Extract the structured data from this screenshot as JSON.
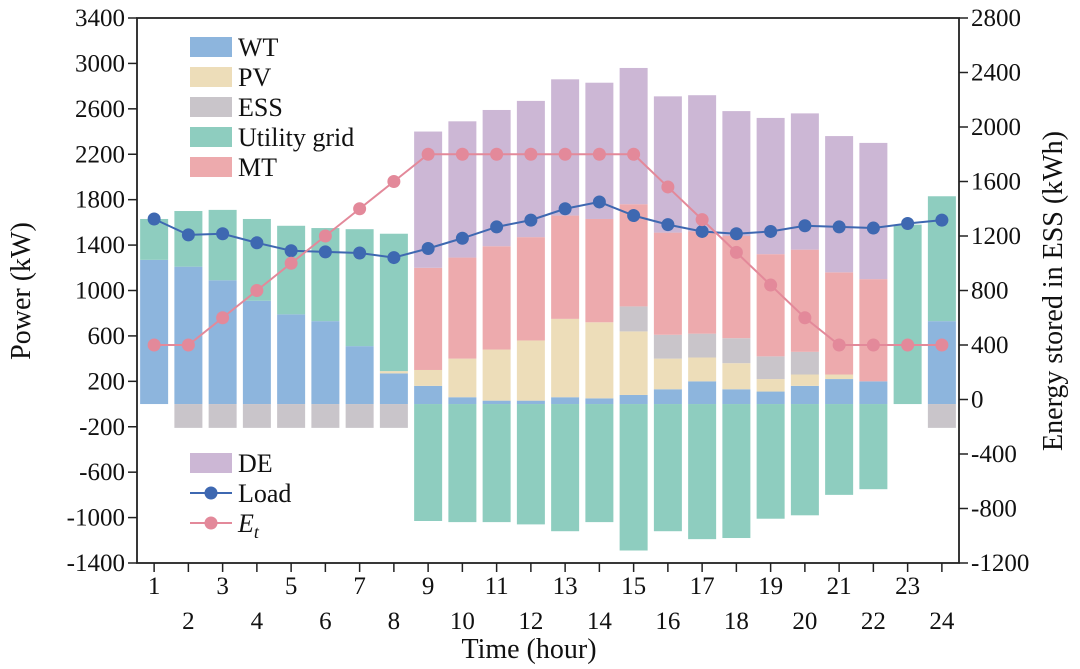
{
  "chart_data": {
    "type": "bar",
    "xlabel": "Time (hour)",
    "ylabel_left": "Power (kW)",
    "ylabel_right": "Energy stored in ESS (kWh)",
    "ylim_left": [
      -1400,
      3400
    ],
    "yticks_left": [
      -1400,
      -1000,
      -600,
      -200,
      200,
      600,
      1000,
      1400,
      1800,
      2200,
      2600,
      3000,
      3400
    ],
    "ylim_right": [
      -1200,
      2800
    ],
    "yticks_right": [
      -1200,
      -800,
      -400,
      0,
      400,
      800,
      1200,
      1600,
      2000,
      2400,
      2800
    ],
    "categories": [
      "1",
      "2",
      "3",
      "4",
      "5",
      "6",
      "7",
      "8",
      "9",
      "10",
      "11",
      "12",
      "13",
      "14",
      "15",
      "16",
      "17",
      "18",
      "19",
      "20",
      "21",
      "22",
      "23",
      "24"
    ],
    "bar_series": [
      {
        "name": "WT",
        "color": "#8DB5DD",
        "values": [
          1270,
          1210,
          1090,
          910,
          790,
          730,
          510,
          270,
          160,
          60,
          30,
          30,
          60,
          50,
          80,
          130,
          200,
          130,
          110,
          160,
          220,
          200,
          0,
          730
        ]
      },
      {
        "name": "PV",
        "color": "#EDDDB9",
        "values": [
          0,
          0,
          0,
          0,
          0,
          0,
          0,
          20,
          140,
          340,
          450,
          530,
          690,
          670,
          560,
          270,
          210,
          230,
          110,
          100,
          40,
          0,
          0,
          0
        ]
      },
      {
        "name": "ESS",
        "color": "#C9C5CA",
        "values": [
          0,
          -210,
          -210,
          -210,
          -210,
          -210,
          -210,
          -210,
          0,
          0,
          0,
          0,
          0,
          0,
          220,
          210,
          210,
          220,
          200,
          200,
          0,
          0,
          0,
          -210
        ]
      },
      {
        "name": "Utility grid",
        "color": "#8ECDBF",
        "values": [
          360,
          490,
          620,
          720,
          780,
          820,
          1030,
          1210,
          -1030,
          -1040,
          -1040,
          -1060,
          -1120,
          -1040,
          -1290,
          -1120,
          -1190,
          -1180,
          -1010,
          -980,
          -800,
          -750,
          1580,
          1100
        ]
      },
      {
        "name": "MT",
        "color": "#EDAAAD",
        "values": [
          0,
          0,
          0,
          0,
          0,
          0,
          0,
          0,
          900,
          890,
          910,
          910,
          910,
          910,
          900,
          900,
          900,
          900,
          900,
          900,
          900,
          900,
          0,
          0
        ]
      },
      {
        "name": "DE",
        "color": "#CCB7D5",
        "values": [
          0,
          0,
          0,
          0,
          0,
          0,
          0,
          0,
          1200,
          1200,
          1200,
          1200,
          1200,
          1200,
          1200,
          1200,
          1200,
          1100,
          1200,
          1200,
          1200,
          1200,
          0,
          0
        ]
      }
    ],
    "line_series": [
      {
        "name": "Load",
        "axis": "left",
        "color": "#3E68B1",
        "values": [
          1630,
          1490,
          1500,
          1420,
          1350,
          1340,
          1330,
          1290,
          1370,
          1460,
          1560,
          1620,
          1720,
          1780,
          1660,
          1580,
          1520,
          1500,
          1520,
          1570,
          1560,
          1550,
          1590,
          1620
        ]
      },
      {
        "name": "E_t",
        "axis": "right",
        "color": "#E3899A",
        "values": [
          400,
          400,
          600,
          800,
          1000,
          1200,
          1400,
          1600,
          1800,
          1800,
          1800,
          1800,
          1800,
          1800,
          1800,
          1560,
          1320,
          1080,
          840,
          600,
          400,
          400,
          400,
          400
        ]
      }
    ],
    "legend_top": [
      "WT",
      "PV",
      "ESS",
      "Utility grid",
      "MT"
    ],
    "legend_bottom": [
      "DE",
      "Load",
      "E_t"
    ]
  }
}
